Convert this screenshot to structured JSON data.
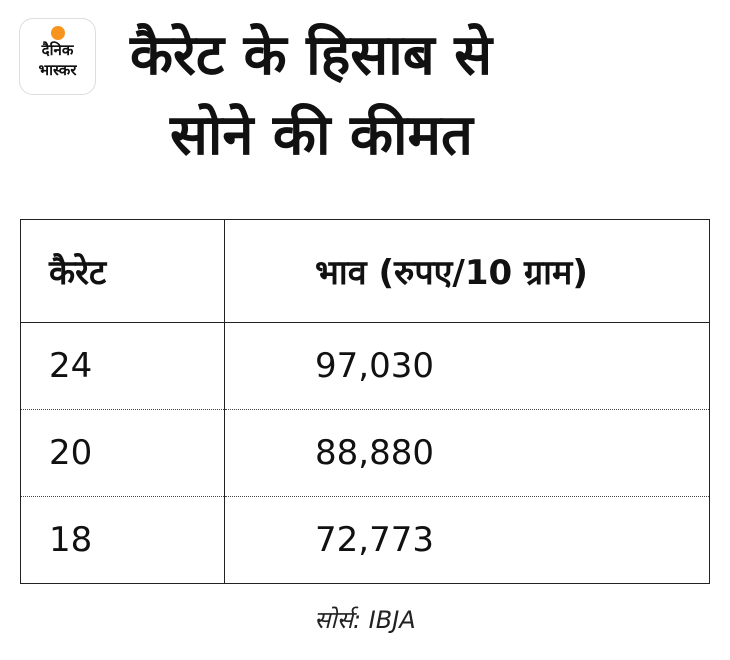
{
  "logo": {
    "line1": "दैनिक",
    "line2": "भास्कर",
    "colors": {
      "sun": "#f7941d"
    }
  },
  "title": {
    "line1": "कैरेट के हिसाब से",
    "line2": "सोने की कीमत"
  },
  "table": {
    "headers": [
      "कैरेट",
      "भाव (रुपए/10 ग्राम)"
    ],
    "rows": [
      {
        "carat": "24",
        "price": "97,030"
      },
      {
        "carat": "20",
        "price": "88,880"
      },
      {
        "carat": "18",
        "price": "72,773"
      }
    ]
  },
  "source": "सोर्स: IBJA"
}
